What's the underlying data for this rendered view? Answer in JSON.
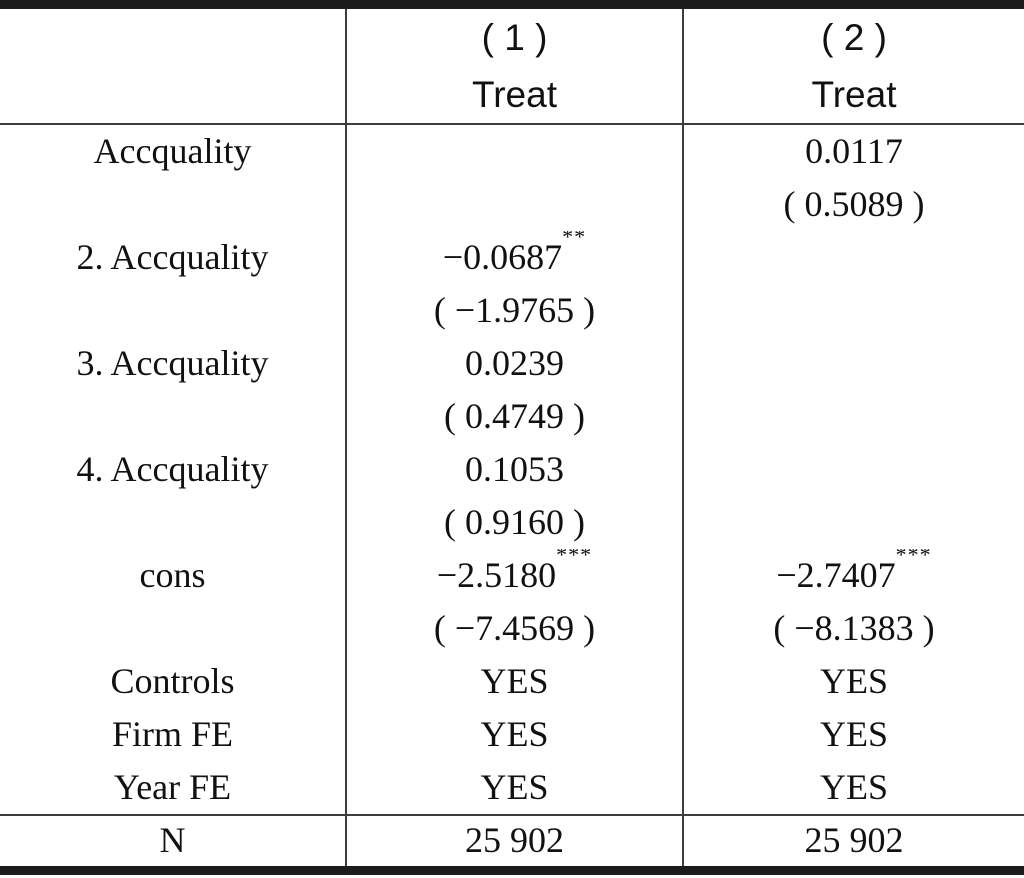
{
  "header": {
    "label_col": "",
    "model1": {
      "number": "( 1 )",
      "dep_var": "Treat"
    },
    "model2": {
      "number": "( 2 )",
      "dep_var": "Treat"
    }
  },
  "rows": [
    {
      "label": "Accquality",
      "m1": {
        "coef": "",
        "stars": "",
        "t": ""
      },
      "m2": {
        "coef": "0.0117",
        "stars": "",
        "t": "( 0.5089 )"
      }
    },
    {
      "label": "2. Accquality",
      "m1": {
        "coef": "−0.0687",
        "stars": "**",
        "t": "( −1.9765 )"
      },
      "m2": {
        "coef": "",
        "stars": "",
        "t": ""
      }
    },
    {
      "label": "3. Accquality",
      "m1": {
        "coef": "0.0239",
        "stars": "",
        "t": "( 0.4749 )"
      },
      "m2": {
        "coef": "",
        "stars": "",
        "t": ""
      }
    },
    {
      "label": "4. Accquality",
      "m1": {
        "coef": "0.1053",
        "stars": "",
        "t": "( 0.9160 )"
      },
      "m2": {
        "coef": "",
        "stars": "",
        "t": ""
      }
    },
    {
      "label": "cons",
      "m1": {
        "coef": "−2.5180",
        "stars": "***",
        "t": "( −7.4569 )"
      },
      "m2": {
        "coef": "−2.7407",
        "stars": "***",
        "t": "( −8.1383 )"
      }
    }
  ],
  "fe_rows": [
    {
      "label": "Controls",
      "m1": "YES",
      "m2": "YES"
    },
    {
      "label": "Firm FE",
      "m1": "YES",
      "m2": "YES"
    },
    {
      "label": "Year FE",
      "m1": "YES",
      "m2": "YES"
    }
  ],
  "n_row": {
    "label": "N",
    "m1": "25 902",
    "m2": "25 902"
  },
  "colors": {
    "text": "#111111",
    "thick_rule": "#1c1c1c",
    "thin_rule": "#3d3d3d",
    "background": "#ffffff"
  }
}
